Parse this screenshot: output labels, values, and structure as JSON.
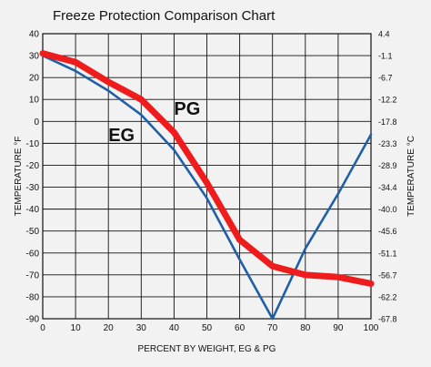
{
  "chart_data": {
    "type": "line",
    "title": "Freeze Protection Comparison Chart",
    "xlabel": "PERCENT BY WEIGHT, EG & PG",
    "ylabel_left": "TEMPERATURE °F",
    "ylabel_right": "TEMPERATURE °C",
    "xlim": [
      0,
      100
    ],
    "ylim": [
      -90,
      40
    ],
    "grid": true,
    "x_ticks": [
      "0",
      "10",
      "20",
      "30",
      "40",
      "50",
      "60",
      "70",
      "80",
      "90",
      "100"
    ],
    "y_ticks_left": [
      "40",
      "30",
      "20",
      "10",
      "0",
      "-10",
      "-20",
      "-30",
      "-40",
      "-50",
      "-60",
      "-70",
      "-80",
      "-90"
    ],
    "y_ticks_right": [
      "4.4",
      "-1.1",
      "-6.7",
      "-12.2",
      "-17.8",
      "-23.3",
      "-28.9",
      "-34.4",
      "-40.0",
      "-45.6",
      "-51.1",
      "-56.7",
      "-62.2",
      "-67.8"
    ],
    "series": [
      {
        "name": "EG",
        "color": "#1f5fa8",
        "x": [
          0,
          10,
          20,
          30,
          40,
          50,
          60,
          70,
          80,
          90,
          100
        ],
        "y": [
          30,
          23,
          14,
          3,
          -13,
          -35,
          -63,
          -90,
          -58,
          -33,
          -6
        ]
      },
      {
        "name": "PG",
        "color": "#ee1c1c",
        "x": [
          0,
          10,
          20,
          30,
          40,
          50,
          60,
          70,
          80,
          90,
          100
        ],
        "y": [
          31,
          27,
          18,
          10,
          -5,
          -28,
          -54,
          -66,
          -70,
          -71,
          -74
        ]
      }
    ],
    "annotations": [
      "EG",
      "PG"
    ]
  }
}
